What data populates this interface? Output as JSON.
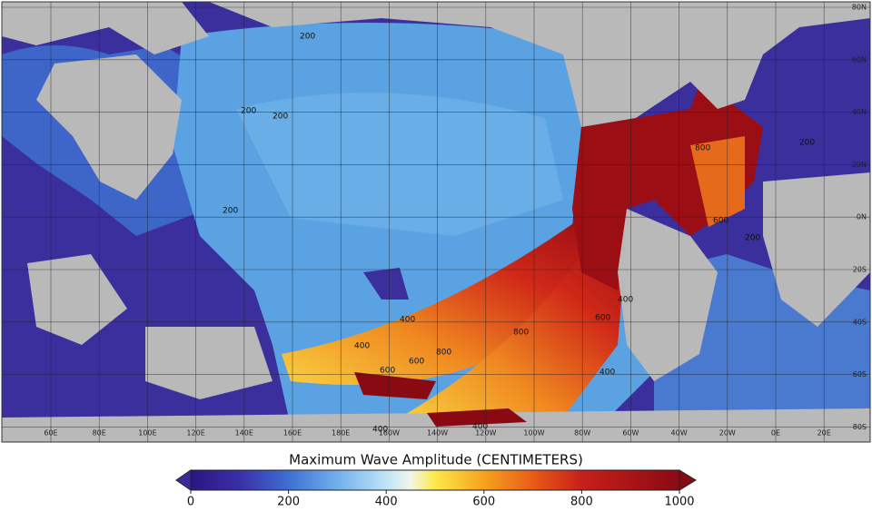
{
  "map": {
    "longitude_labels": [
      "60E",
      "80E",
      "100E",
      "120E",
      "140E",
      "160E",
      "180E",
      "160W",
      "140W",
      "120W",
      "100W",
      "80W",
      "60W",
      "40W",
      "20W",
      "0E",
      "20E"
    ],
    "latitude_labels": [
      "80N",
      "60N",
      "40N",
      "20N",
      "0N",
      "20S",
      "40S",
      "60S",
      "80S"
    ],
    "contour_labels": [
      "200",
      "200",
      "200",
      "200",
      "200",
      "400",
      "400",
      "600",
      "600",
      "800",
      "800",
      "400",
      "600",
      "400",
      "800",
      "600",
      "200",
      "400",
      "400"
    ]
  },
  "colorbar": {
    "title": "Maximum Wave Amplitude (CENTIMETERS)",
    "range": [
      0,
      1000
    ],
    "ticks": [
      0,
      200,
      400,
      600,
      800,
      1000
    ]
  }
}
